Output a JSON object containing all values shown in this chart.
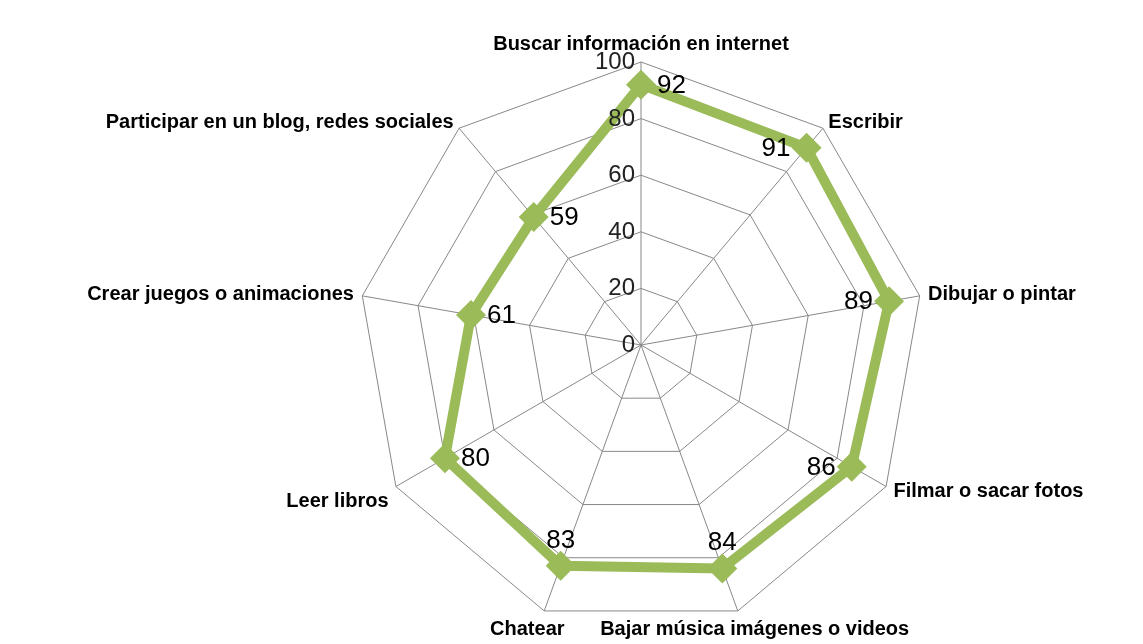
{
  "chart_data": {
    "type": "radar",
    "categories": [
      "Buscar información en internet",
      "Escribir",
      "Dibujar o pintar",
      "Filmar o sacar fotos",
      "Bajar música imágenes o videos",
      "Chatear",
      "Leer libros",
      "Crear juegos o animaciones",
      "Participar en un blog, redes sociales"
    ],
    "series": [
      {
        "color": "#9bbb59",
        "values": [
          92,
          91,
          89,
          86,
          84,
          83,
          80,
          61,
          59
        ]
      }
    ],
    "ylim": [
      0,
      100
    ],
    "yticks": [
      0,
      20,
      40,
      60,
      80,
      100
    ],
    "grid": true,
    "marker": "diamond",
    "data_labels": true
  }
}
